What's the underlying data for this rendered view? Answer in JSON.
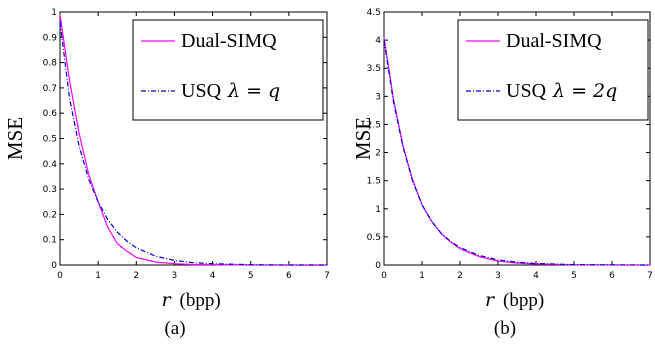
{
  "chart_data": [
    {
      "type": "line",
      "caption": "(a)",
      "xlabel_var": "r",
      "xlabel_unit": "(bpp)",
      "ylabel": "MSE",
      "xlim": [
        0,
        7
      ],
      "ylim": [
        0,
        1
      ],
      "x_ticks": [
        "0",
        "1",
        "2",
        "3",
        "4",
        "5",
        "6",
        "7"
      ],
      "y_ticks": [
        "0",
        "0.1",
        "0.2",
        "0.3",
        "0.4",
        "0.5",
        "0.6",
        "0.7",
        "0.8",
        "0.9",
        "1"
      ],
      "legend_position": "top-right",
      "series": [
        {
          "name": "Dual-SIMQ",
          "legend_math": "",
          "color": "#ff00ff",
          "style": "solid",
          "x": [
            0,
            0.25,
            0.5,
            0.75,
            1.0,
            1.25,
            1.5,
            1.75,
            2.0,
            2.5,
            3.0,
            3.5,
            4.0,
            5.0,
            6.0,
            7.0
          ],
          "y": [
            0.99,
            0.73,
            0.52,
            0.36,
            0.25,
            0.15,
            0.085,
            0.055,
            0.03,
            0.012,
            0.005,
            0.002,
            0.001,
            0.0,
            0.0,
            0.0
          ]
        },
        {
          "name": "USQ",
          "legend_math": "λ = q",
          "color": "#0000cc",
          "style": "dashdot",
          "x": [
            0,
            0.25,
            0.5,
            0.75,
            1.0,
            1.25,
            1.5,
            1.75,
            2.0,
            2.5,
            3.0,
            3.5,
            4.0,
            5.0,
            6.0,
            7.0
          ],
          "y": [
            0.96,
            0.66,
            0.47,
            0.34,
            0.25,
            0.18,
            0.13,
            0.095,
            0.068,
            0.035,
            0.018,
            0.009,
            0.005,
            0.001,
            0.0,
            0.0
          ]
        }
      ]
    },
    {
      "type": "line",
      "caption": "(b)",
      "xlabel_var": "r",
      "xlabel_unit": "(bpp)",
      "ylabel": "MSE",
      "xlim": [
        0,
        7
      ],
      "ylim": [
        0,
        4.5
      ],
      "x_ticks": [
        "0",
        "1",
        "2",
        "3",
        "4",
        "5",
        "6",
        "7"
      ],
      "y_ticks": [
        "0",
        "0.5",
        "1",
        "1.5",
        "2",
        "2.5",
        "3",
        "3.5",
        "4",
        "4.5"
      ],
      "legend_position": "top-right",
      "series": [
        {
          "name": "Dual-SIMQ",
          "legend_math": "",
          "color": "#ff00ff",
          "style": "solid",
          "x": [
            0,
            0.25,
            0.5,
            0.75,
            1.0,
            1.25,
            1.5,
            1.75,
            2.0,
            2.5,
            3.0,
            3.5,
            4.0,
            5.0,
            6.0,
            7.0
          ],
          "y": [
            4.05,
            2.95,
            2.12,
            1.52,
            1.07,
            0.78,
            0.56,
            0.41,
            0.29,
            0.15,
            0.07,
            0.035,
            0.017,
            0.004,
            0.001,
            0.0
          ]
        },
        {
          "name": "USQ",
          "legend_math": "λ = 2q",
          "color": "#0000cc",
          "style": "dashdot",
          "x": [
            0,
            0.25,
            0.5,
            0.75,
            1.0,
            1.25,
            1.5,
            1.75,
            2.0,
            2.5,
            3.0,
            3.5,
            4.0,
            5.0,
            6.0,
            7.0
          ],
          "y": [
            4.0,
            2.9,
            2.1,
            1.5,
            1.07,
            0.78,
            0.57,
            0.42,
            0.31,
            0.17,
            0.09,
            0.05,
            0.027,
            0.008,
            0.002,
            0.0
          ]
        }
      ]
    }
  ]
}
